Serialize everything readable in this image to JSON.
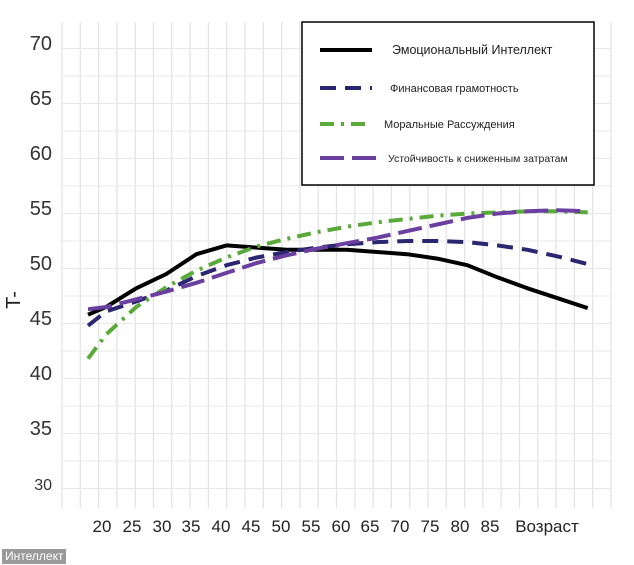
{
  "chart_data": {
    "type": "line",
    "ylabel": "T-",
    "ylim": [
      27,
      72
    ],
    "y_ticks": [
      30,
      35,
      40,
      45,
      50,
      55,
      60,
      65,
      70
    ],
    "x_tick_labels": [
      "20",
      "25",
      "30",
      "35",
      "40",
      "45",
      "50",
      "55",
      "60",
      "65",
      "70",
      "75",
      "80",
      "85",
      "Возраст"
    ],
    "grid": true,
    "legend_position": "top-right",
    "series": [
      {
        "name": "Эмоциональный Интеллект",
        "color": "#000000",
        "dash": "solid",
        "x": [
          17,
          20,
          25,
          30,
          35,
          40,
          45,
          50,
          55,
          60,
          65,
          70,
          75,
          80,
          85,
          90,
          95,
          100
        ],
        "y": [
          45.3,
          46.0,
          47.7,
          49.0,
          50.8,
          51.6,
          51.4,
          51.2,
          51.2,
          51.2,
          51.0,
          50.8,
          50.4,
          49.8,
          48.7,
          47.7,
          46.8,
          45.9
        ]
      },
      {
        "name": "Финансовая грамотность",
        "color": "#2b2670",
        "dash": "dash",
        "x": [
          17,
          20,
          25,
          30,
          35,
          40,
          45,
          50,
          55,
          60,
          65,
          70,
          75,
          80,
          85,
          90,
          95,
          100
        ],
        "y": [
          44.3,
          45.6,
          46.5,
          47.5,
          48.8,
          49.8,
          50.5,
          51.0,
          51.4,
          51.7,
          51.9,
          52.0,
          52.0,
          51.9,
          51.6,
          51.2,
          50.6,
          49.9
        ]
      },
      {
        "name": "Моральные Рассуждения",
        "color": "#5aaa3a",
        "dash": "dashdot",
        "x": [
          17,
          20,
          25,
          30,
          35,
          40,
          45,
          50,
          55,
          60,
          65,
          70,
          75,
          80,
          85,
          90,
          95,
          100
        ],
        "y": [
          41.3,
          43.5,
          46.0,
          47.8,
          49.3,
          50.5,
          51.5,
          52.2,
          52.8,
          53.3,
          53.7,
          54.0,
          54.3,
          54.5,
          54.6,
          54.7,
          54.7,
          54.6
        ]
      },
      {
        "name": "Устойчивость к сниженным затратам",
        "color": "#6b3fa0",
        "dash": "longdash",
        "x": [
          17,
          20,
          25,
          30,
          35,
          40,
          45,
          50,
          55,
          60,
          65,
          70,
          75,
          80,
          85,
          90,
          95,
          100
        ],
        "y": [
          45.8,
          46.0,
          46.7,
          47.4,
          48.2,
          49.1,
          50.0,
          50.7,
          51.3,
          51.8,
          52.3,
          52.9,
          53.5,
          54.1,
          54.5,
          54.7,
          54.8,
          54.7
        ]
      }
    ]
  },
  "watermark": "Интеллект"
}
